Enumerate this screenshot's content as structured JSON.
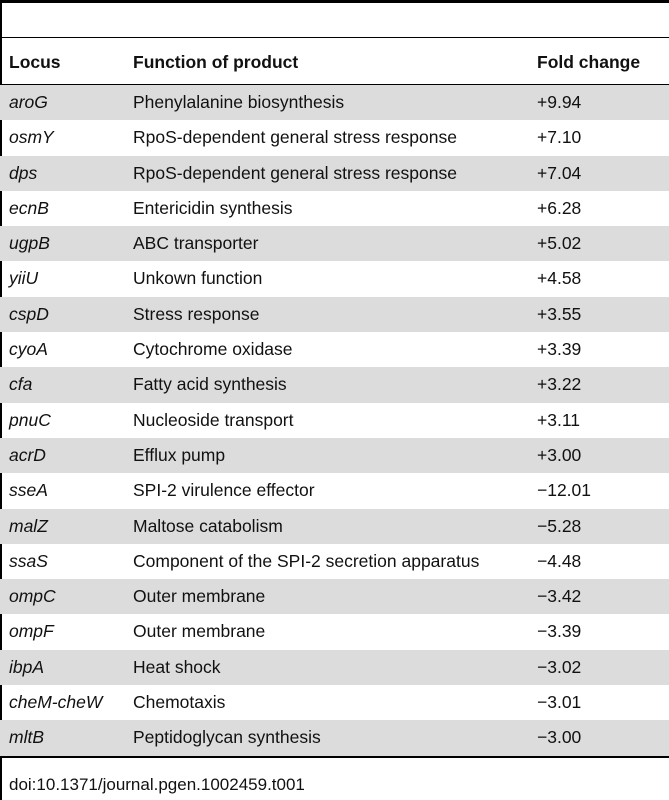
{
  "table": {
    "headers": [
      "Locus",
      "Function of product",
      "Fold change"
    ],
    "rows": [
      [
        "aroG",
        "Phenylalanine biosynthesis",
        "+9.94"
      ],
      [
        "osmY",
        "RpoS-dependent general stress response",
        "+7.10"
      ],
      [
        "dps",
        "RpoS-dependent general stress response",
        "+7.04"
      ],
      [
        "ecnB",
        "Entericidin synthesis",
        "+6.28"
      ],
      [
        "ugpB",
        "ABC transporter",
        "+5.02"
      ],
      [
        "yiiU",
        "Unkown function",
        "+4.58"
      ],
      [
        "cspD",
        "Stress response",
        "+3.55"
      ],
      [
        "cyoA",
        "Cytochrome oxidase",
        "+3.39"
      ],
      [
        "cfa",
        "Fatty acid synthesis",
        "+3.22"
      ],
      [
        "pnuC",
        "Nucleoside transport",
        "+3.11"
      ],
      [
        "acrD",
        "Efflux pump",
        "+3.00"
      ],
      [
        "sseA",
        "SPI-2 virulence effector",
        "−12.01"
      ],
      [
        "malZ",
        "Maltose catabolism",
        "−5.28"
      ],
      [
        "ssaS",
        "Component of the SPI-2 secretion apparatus",
        "−4.48"
      ],
      [
        "ompC",
        "Outer membrane",
        "−3.42"
      ],
      [
        "ompF",
        "Outer membrane",
        "−3.39"
      ],
      [
        "ibpA",
        "Heat shock",
        "−3.02"
      ],
      [
        "cheM-cheW",
        "Chemotaxis",
        "−3.01"
      ],
      [
        "mltB",
        "Peptidoglycan synthesis",
        "−3.00"
      ]
    ]
  },
  "caption": "doi:10.1371/journal.pgen.1002459.t001"
}
